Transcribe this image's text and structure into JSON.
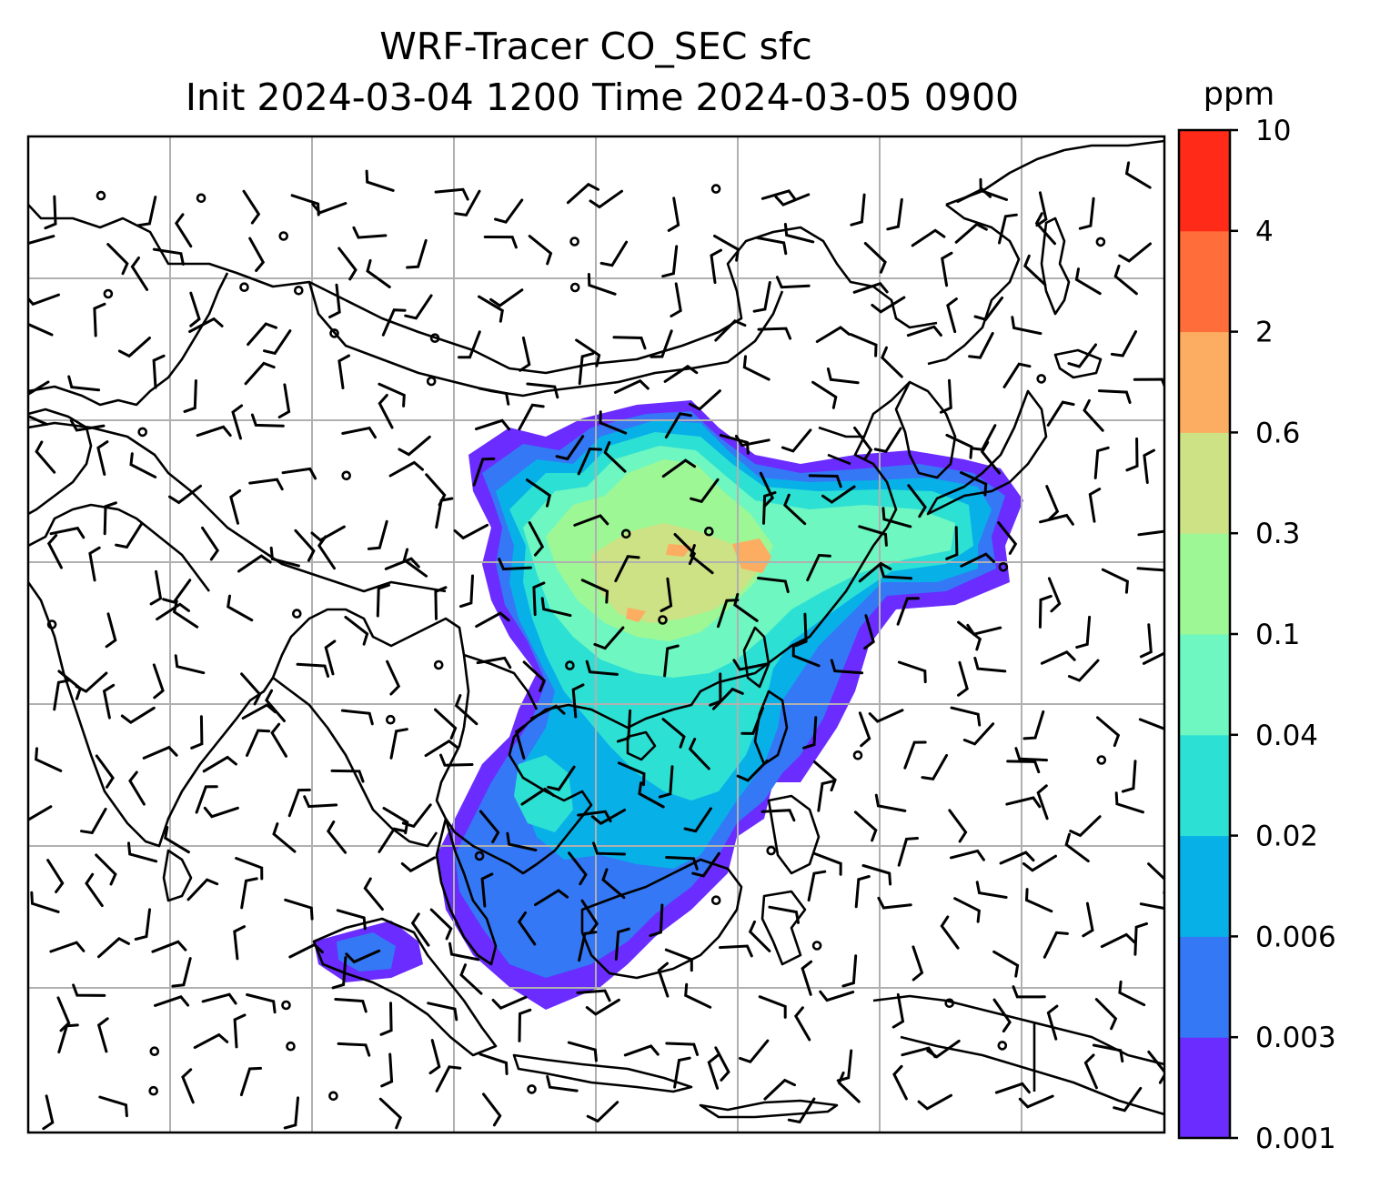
{
  "figure": {
    "title_line1": "WRF-Tracer CO_SEC sfc",
    "title_line2": "Init 2024-03-04 1200 Time 2024-03-05 0900"
  },
  "colorbar": {
    "unit_label": "ppm",
    "levels": [
      "0.001",
      "0.003",
      "0.006",
      "0.02",
      "0.04",
      "0.1",
      "0.3",
      "0.6",
      "2",
      "4",
      "10"
    ],
    "colors": [
      "#6a2cff",
      "#3478f6",
      "#08b0e8",
      "#2de0d4",
      "#6ef7c0",
      "#9ef795",
      "#cde185",
      "#fcad61",
      "#ff6d3a",
      "#ff2a17"
    ]
  },
  "map": {
    "projection_grid": "on",
    "coastline_color": "#000000",
    "wind_barbs": "on"
  }
}
